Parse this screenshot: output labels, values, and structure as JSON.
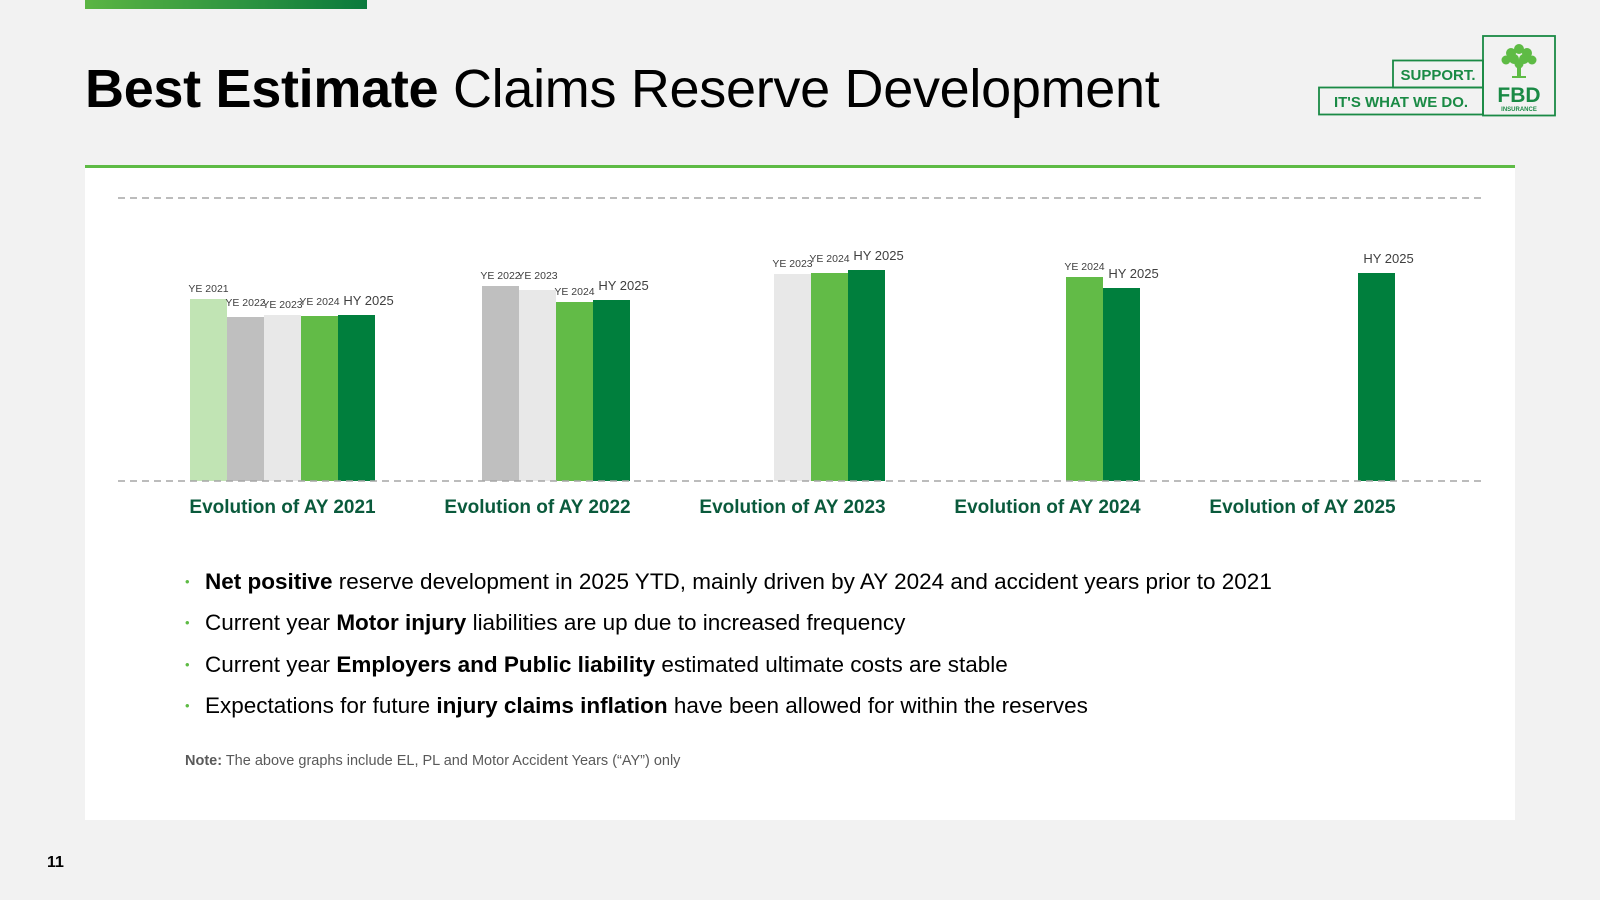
{
  "title": {
    "bold": "Best Estimate",
    "rest": " Claims Reserve Development"
  },
  "logo": {
    "line1": "SUPPORT.",
    "line2": "IT'S WHAT WE DO.",
    "brand": "FBD",
    "sub": "INSURANCE",
    "icon": "tree-icon"
  },
  "colors": {
    "accent": "#5ebb45",
    "dark_green": "#007f3d",
    "light_green": "#c1e4b4",
    "mid_grey": "#bfbfbf",
    "light_grey": "#e8e8e8"
  },
  "chart_data": {
    "type": "bar",
    "title": "",
    "xlabel": "",
    "ylabel": "",
    "value_scale": "relative, no y-axis printed; values are bar heights relative to the chart's baseline",
    "categories": [
      "Evolution of AY 2021",
      "Evolution of AY 2022",
      "Evolution of AY 2023",
      "Evolution of AY 2024",
      "Evolution of AY 2025"
    ],
    "series": [
      {
        "name": "YE 2021",
        "color": "#c1e4b4",
        "values": [
          182,
          null,
          null,
          null,
          null
        ]
      },
      {
        "name": "YE 2022",
        "color": "#bfbfbf",
        "values": [
          164,
          195,
          null,
          null,
          null
        ]
      },
      {
        "name": "YE 2023",
        "color": "#e8e8e8",
        "values": [
          166,
          191,
          207,
          null,
          null
        ]
      },
      {
        "name": "YE 2024",
        "color": "#62bb47",
        "values": [
          165,
          179,
          208,
          204,
          null
        ]
      },
      {
        "name": "HY 2025",
        "color": "#007f3d",
        "values": [
          166,
          181,
          211,
          193,
          208
        ]
      }
    ],
    "gridlines": "dashed top and baseline",
    "legend": "none (series labels above each bar)"
  },
  "bullets": [
    {
      "bold": "Net positive",
      "pre": "",
      "post": " reserve development in 2025 YTD, mainly driven by AY 2024 and accident years prior to 2021"
    },
    {
      "pre": "Current year ",
      "bold": "Motor injury",
      "post": " liabilities are up due to increased frequency"
    },
    {
      "pre": "Current year ",
      "bold": "Employers and Public liability",
      "post": " estimated ultimate costs are stable"
    },
    {
      "pre": "Expectations for future ",
      "bold": "injury claims inflation",
      "post": " have been allowed for within the reserves"
    }
  ],
  "bullet_marker": "•",
  "note": {
    "label": "Note:",
    "text": " The above graphs include EL, PL and Motor Accident Years (“AY”) only"
  },
  "page_number": "11"
}
